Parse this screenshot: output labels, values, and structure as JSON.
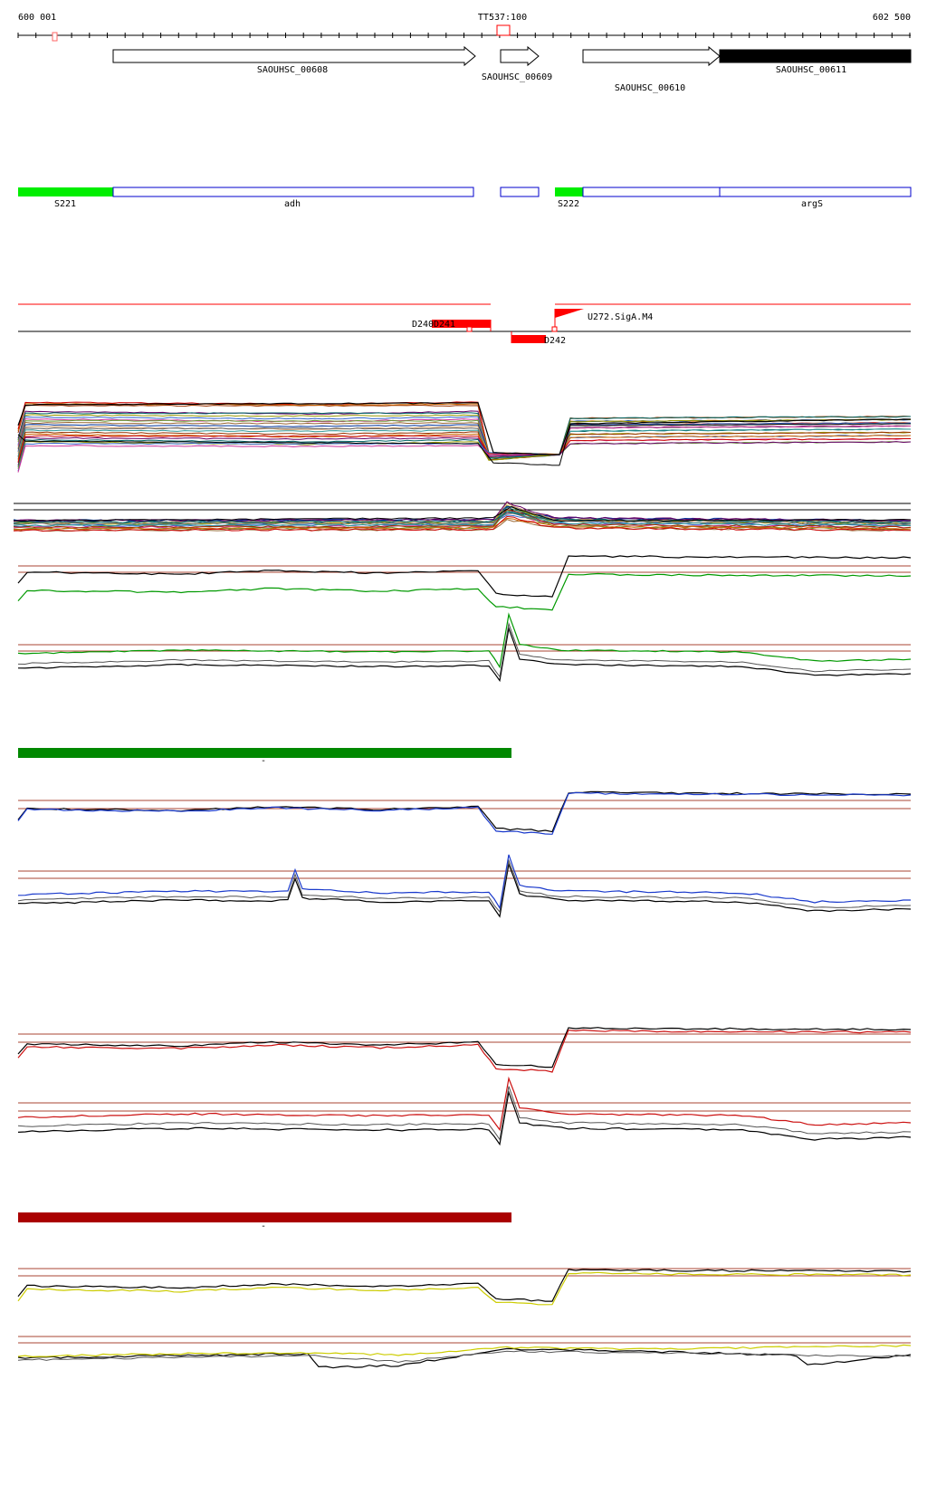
{
  "ruler": {
    "start_label": "600 001",
    "end_label": "602 500",
    "terminator_label": "TT537:100"
  },
  "genes": [
    {
      "id": "SAOUHSC_00608",
      "strand": "+",
      "fill": "#ffffff"
    },
    {
      "id": "SAOUHSC_00609",
      "strand": "+",
      "fill": "#ffffff"
    },
    {
      "id": "SAOUHSC_00610",
      "strand": "+",
      "fill": "#ffffff"
    },
    {
      "id": "SAOUHSC_00611",
      "strand": "+",
      "fill": "#000000"
    }
  ],
  "segments": [
    {
      "label": "S221",
      "kind": "promoter-segment",
      "color": "#00ee00"
    },
    {
      "label": "adh",
      "kind": "transcription-unit",
      "color": "#0000cc"
    },
    {
      "label": "",
      "kind": "transcription-unit",
      "color": "#0000cc"
    },
    {
      "label": "S222",
      "kind": "promoter-segment",
      "color": "#00ee00"
    },
    {
      "label": "",
      "kind": "transcription-unit",
      "color": "#0000cc"
    },
    {
      "label": "argS",
      "kind": "transcription-unit",
      "color": "#0000cc"
    }
  ],
  "features": [
    {
      "label": "D240",
      "kind": "downshift"
    },
    {
      "label": "D241",
      "kind": "downshift"
    },
    {
      "label": "D242",
      "kind": "downshift"
    },
    {
      "label": "U272.SigA.M4",
      "kind": "upshift"
    }
  ],
  "condition_bars": [
    {
      "color": "#008800",
      "caption": "-"
    },
    {
      "color": "#aa0000",
      "caption": "-"
    }
  ],
  "colors": {
    "feature_red": "#ff0000",
    "reference_line": "#aa4433",
    "track_green": "#009900",
    "track_blue": "#1a3acc",
    "track_red": "#cc1111",
    "track_yellow": "#cccc00",
    "profile_palette": [
      "#993300",
      "#cc6600",
      "#cc0000",
      "#660066",
      "#006666",
      "#999900",
      "#3366cc",
      "#cc3399",
      "#669933",
      "#996633",
      "#003399",
      "#cc9966",
      "#666666",
      "#339999"
    ]
  }
}
